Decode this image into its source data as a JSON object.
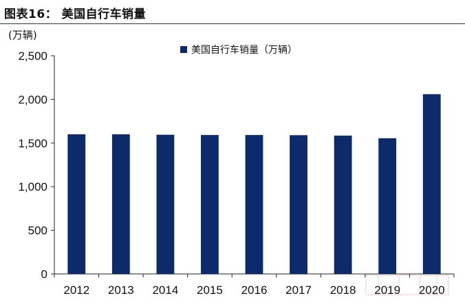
{
  "figure": {
    "title": "图表16：  美国自行车销量"
  },
  "chart_data": {
    "type": "bar",
    "title": "美国自行车销量",
    "unit_label": "(万辆)",
    "xlabel": "",
    "ylabel": "",
    "categories": [
      "2012",
      "2013",
      "2014",
      "2015",
      "2016",
      "2017",
      "2018",
      "2019",
      "2020"
    ],
    "series": [
      {
        "name": "美国自行车销量（万辆）",
        "values": [
          1600,
          1600,
          1595,
          1592,
          1592,
          1590,
          1585,
          1555,
          2060
        ]
      }
    ],
    "ylim": [
      0,
      2500
    ],
    "yticks": [
      0,
      500,
      1000,
      1500,
      2000,
      2500
    ],
    "ytick_labels": [
      "0",
      "500",
      "1,000",
      "1,500",
      "2,000",
      "2,500"
    ],
    "grid": false,
    "legend_position": "top-center",
    "bar_color": "#0d2b6b"
  }
}
